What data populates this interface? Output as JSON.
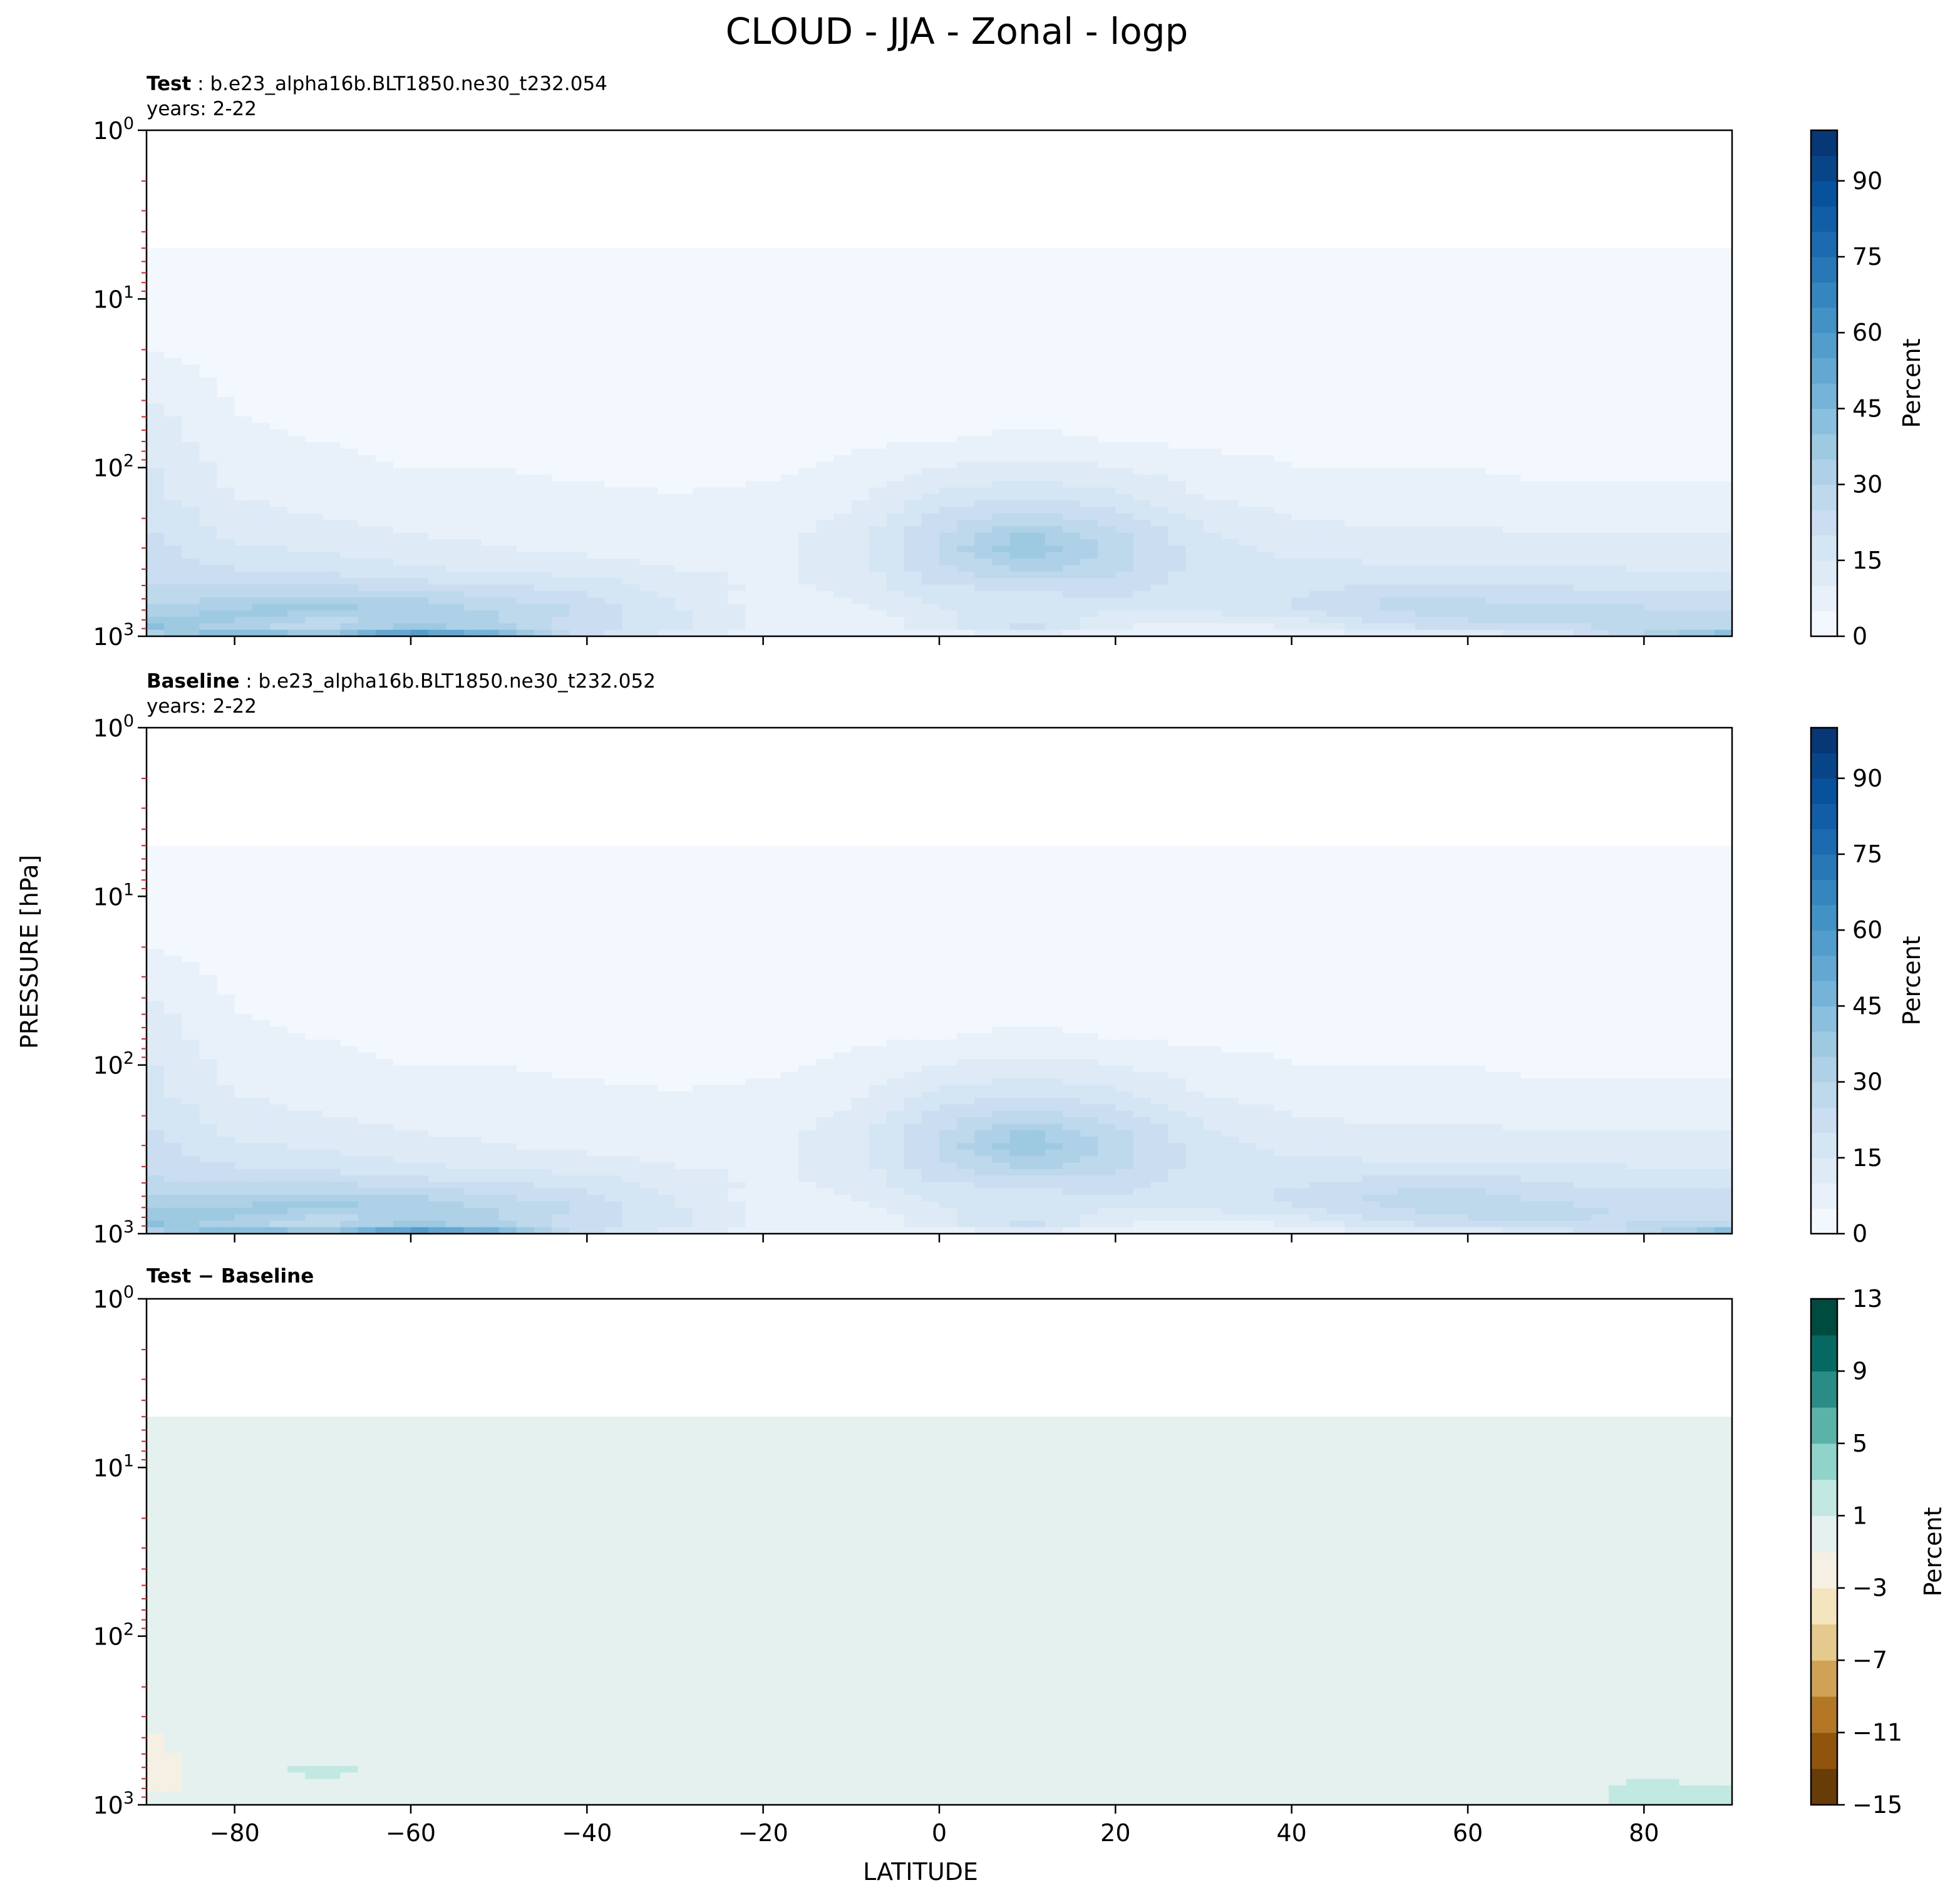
{
  "figure": {
    "title": "CLOUD - JJA - Zonal - logp",
    "xlabel": "LATITUDE",
    "ylabel": "PRESSURE [hPa]"
  },
  "chart_data": [
    {
      "type": "heatmap",
      "panel": "test",
      "title_bold": "Test",
      "title_rest": ": b.e23_alpha16b.BLT1850.ne30_t232.054",
      "subtitle": "years: 2-22",
      "x": [
        -90,
        -80,
        -70,
        -60,
        -50,
        -40,
        -30,
        -20,
        -10,
        0,
        10,
        20,
        30,
        40,
        50,
        60,
        70,
        80,
        90
      ],
      "xlim": [
        -90,
        90
      ],
      "y": [
        1000,
        900,
        800,
        700,
        600,
        500,
        400,
        300,
        250,
        200,
        150,
        100,
        70,
        50,
        30,
        20,
        10,
        5
      ],
      "ylim": [
        1000,
        1
      ],
      "yscale": "log",
      "xticks": [
        -80,
        -60,
        -40,
        -20,
        0,
        20,
        40,
        60,
        80
      ],
      "show_xticklabels": false,
      "yticks": [
        "10^0",
        "10^1",
        "10^2",
        "10^3"
      ],
      "values": [
        [
          25,
          55,
          45,
          70,
          55,
          22,
          12,
          6,
          5,
          5,
          6,
          5,
          4,
          6,
          6,
          8,
          14,
          30,
          55
        ],
        [
          42,
          30,
          28,
          38,
          32,
          22,
          16,
          8,
          6,
          12,
          22,
          10,
          6,
          10,
          18,
          20,
          22,
          28,
          30
        ],
        [
          38,
          35,
          28,
          32,
          30,
          22,
          17,
          8,
          6,
          14,
          20,
          12,
          10,
          14,
          22,
          25,
          26,
          26,
          26
        ],
        [
          32,
          36,
          38,
          33,
          30,
          24,
          16,
          8,
          8,
          15,
          14,
          16,
          16,
          20,
          25,
          28,
          28,
          26,
          25
        ],
        [
          28,
          30,
          33,
          30,
          25,
          22,
          14,
          8,
          10,
          16,
          18,
          20,
          18,
          20,
          25,
          25,
          22,
          22,
          22
        ],
        [
          25,
          24,
          25,
          22,
          20,
          18,
          13,
          9,
          11,
          20,
          22,
          22,
          18,
          18,
          20,
          20,
          20,
          18,
          18
        ],
        [
          22,
          20,
          18,
          16,
          14,
          12,
          10,
          9,
          12,
          24,
          32,
          26,
          18,
          16,
          16,
          16,
          16,
          15,
          14
        ],
        [
          22,
          16,
          14,
          12,
          10,
          9,
          8,
          8,
          12,
          26,
          40,
          28,
          17,
          14,
          13,
          12,
          12,
          12,
          12
        ],
        [
          21,
          14,
          12,
          10,
          9,
          8,
          7,
          8,
          12,
          25,
          36,
          26,
          16,
          12,
          11,
          11,
          10,
          10,
          10
        ],
        [
          20,
          12,
          10,
          9,
          8,
          7,
          6,
          7,
          11,
          22,
          28,
          22,
          14,
          10,
          9,
          9,
          8,
          8,
          8
        ],
        [
          17,
          10,
          8,
          7,
          6,
          6,
          5,
          6,
          9,
          16,
          20,
          16,
          10,
          8,
          7,
          7,
          6,
          6,
          6
        ],
        [
          16,
          8,
          6,
          5,
          5,
          4,
          4,
          4,
          6,
          10,
          12,
          10,
          7,
          5,
          5,
          5,
          4,
          4,
          4
        ],
        [
          14,
          6,
          5,
          4,
          4,
          3,
          3,
          3,
          4,
          5,
          6,
          5,
          4,
          4,
          4,
          3,
          3,
          3,
          3
        ],
        [
          12,
          5,
          4,
          3,
          3,
          3,
          3,
          3,
          3,
          4,
          4,
          4,
          3,
          3,
          3,
          3,
          3,
          3,
          3
        ],
        [
          8,
          4,
          3,
          3,
          3,
          2,
          2,
          2,
          3,
          3,
          3,
          3,
          3,
          3,
          3,
          2,
          2,
          2,
          2
        ],
        [
          5,
          3,
          3,
          2,
          2,
          2,
          2,
          2,
          2,
          2,
          2,
          2,
          2,
          2,
          2,
          2,
          2,
          2,
          2
        ],
        [
          4,
          3,
          2,
          2,
          2,
          2,
          2,
          2,
          2,
          2,
          2,
          2,
          2,
          2,
          2,
          2,
          2,
          2,
          2
        ],
        [
          3,
          2,
          2,
          2,
          2,
          2,
          2,
          2,
          2,
          2,
          2,
          2,
          2,
          2,
          2,
          2,
          2,
          2,
          2
        ]
      ],
      "colorbar": {
        "label": "Percent",
        "ticks": [
          0,
          15,
          30,
          45,
          60,
          75,
          90
        ],
        "vmin": 0,
        "vmax": 100,
        "levels": 20,
        "colormap": [
          "#f7fbff",
          "#deebf7",
          "#c6dbef",
          "#9ecae1",
          "#6baed6",
          "#4292c6",
          "#2171b5",
          "#08519c",
          "#08306b"
        ]
      }
    },
    {
      "type": "heatmap",
      "panel": "baseline",
      "title_bold": "Baseline",
      "title_rest": ": b.e23_alpha16b.BLT1850.ne30_t232.052",
      "subtitle": "years: 2-22",
      "x": [
        -90,
        -80,
        -70,
        -60,
        -50,
        -40,
        -30,
        -20,
        -10,
        0,
        10,
        20,
        30,
        40,
        50,
        60,
        70,
        80,
        90
      ],
      "xlim": [
        -90,
        90
      ],
      "y": [
        1000,
        900,
        800,
        700,
        600,
        500,
        400,
        300,
        250,
        200,
        150,
        100,
        70,
        50,
        30,
        20,
        10,
        5
      ],
      "ylim": [
        1000,
        1
      ],
      "yscale": "log",
      "xticks": [
        -80,
        -60,
        -40,
        -20,
        0,
        20,
        40,
        60,
        80
      ],
      "show_xticklabels": false,
      "yticks": [
        "10^0",
        "10^1",
        "10^2",
        "10^3"
      ],
      "values": [
        [
          25,
          55,
          45,
          70,
          55,
          22,
          12,
          6,
          5,
          5,
          6,
          5,
          4,
          6,
          6,
          8,
          14,
          28,
          52
        ],
        [
          42,
          30,
          28,
          38,
          32,
          22,
          16,
          8,
          6,
          12,
          22,
          10,
          6,
          10,
          18,
          20,
          22,
          26,
          28
        ],
        [
          40,
          35,
          28,
          32,
          30,
          22,
          17,
          8,
          6,
          14,
          20,
          12,
          10,
          14,
          22,
          25,
          26,
          24,
          24
        ],
        [
          34,
          36,
          38,
          33,
          30,
          24,
          16,
          8,
          8,
          15,
          14,
          16,
          16,
          20,
          25,
          27,
          26,
          24,
          24
        ],
        [
          30,
          30,
          33,
          30,
          25,
          22,
          14,
          8,
          10,
          16,
          18,
          20,
          18,
          21,
          26,
          28,
          23,
          22,
          22
        ],
        [
          26,
          24,
          25,
          22,
          20,
          18,
          13,
          9,
          11,
          20,
          22,
          22,
          18,
          19,
          22,
          23,
          20,
          18,
          18
        ],
        [
          23,
          20,
          18,
          16,
          14,
          12,
          10,
          9,
          12,
          24,
          32,
          26,
          18,
          16,
          16,
          16,
          16,
          15,
          14
        ],
        [
          22,
          16,
          14,
          12,
          10,
          9,
          8,
          8,
          12,
          26,
          40,
          28,
          17,
          14,
          13,
          12,
          12,
          12,
          12
        ],
        [
          21,
          14,
          12,
          10,
          9,
          8,
          7,
          8,
          12,
          25,
          36,
          26,
          16,
          12,
          11,
          11,
          10,
          10,
          10
        ],
        [
          20,
          12,
          10,
          9,
          8,
          7,
          6,
          7,
          11,
          22,
          28,
          22,
          14,
          10,
          9,
          9,
          8,
          8,
          8
        ],
        [
          17,
          10,
          8,
          7,
          6,
          6,
          5,
          6,
          9,
          16,
          20,
          16,
          10,
          8,
          7,
          7,
          6,
          6,
          6
        ],
        [
          16,
          8,
          6,
          5,
          5,
          4,
          4,
          4,
          6,
          10,
          12,
          10,
          7,
          5,
          5,
          5,
          4,
          4,
          4
        ],
        [
          14,
          6,
          5,
          4,
          4,
          3,
          3,
          3,
          4,
          5,
          6,
          5,
          4,
          4,
          4,
          3,
          3,
          3,
          3
        ],
        [
          12,
          5,
          4,
          3,
          3,
          3,
          3,
          3,
          3,
          4,
          4,
          4,
          3,
          3,
          3,
          3,
          3,
          3,
          3
        ],
        [
          8,
          4,
          3,
          3,
          3,
          2,
          2,
          2,
          3,
          3,
          3,
          3,
          3,
          3,
          3,
          2,
          2,
          2,
          2
        ],
        [
          5,
          3,
          3,
          2,
          2,
          2,
          2,
          2,
          2,
          2,
          2,
          2,
          2,
          2,
          2,
          2,
          2,
          2,
          2
        ],
        [
          4,
          3,
          2,
          2,
          2,
          2,
          2,
          2,
          2,
          2,
          2,
          2,
          2,
          2,
          2,
          2,
          2,
          2,
          2
        ],
        [
          3,
          2,
          2,
          2,
          2,
          2,
          2,
          2,
          2,
          2,
          2,
          2,
          2,
          2,
          2,
          2,
          2,
          2,
          2
        ]
      ],
      "colorbar": {
        "label": "Percent",
        "ticks": [
          0,
          15,
          30,
          45,
          60,
          75,
          90
        ],
        "vmin": 0,
        "vmax": 100,
        "levels": 20,
        "colormap": [
          "#f7fbff",
          "#deebf7",
          "#c6dbef",
          "#9ecae1",
          "#6baed6",
          "#4292c6",
          "#2171b5",
          "#08519c",
          "#08306b"
        ]
      }
    },
    {
      "type": "heatmap",
      "panel": "difference",
      "title_bold": "Test − Baseline",
      "title_rest": "",
      "subtitle": "",
      "x": [
        -90,
        -80,
        -70,
        -60,
        -50,
        -40,
        -30,
        -20,
        -10,
        0,
        10,
        20,
        30,
        40,
        50,
        60,
        70,
        80,
        90
      ],
      "xlim": [
        -90,
        90
      ],
      "y": [
        1000,
        900,
        800,
        700,
        600,
        500,
        400,
        300,
        250,
        200,
        150,
        100,
        70,
        50,
        30,
        20,
        10,
        5
      ],
      "ylim": [
        1000,
        1
      ],
      "yscale": "log",
      "xticks": [
        -80,
        -60,
        -40,
        -20,
        0,
        20,
        40,
        60,
        80
      ],
      "show_xticklabels": true,
      "yticks": [
        "10^0",
        "10^1",
        "10^2",
        "10^3"
      ],
      "values": [
        [
          0,
          0,
          1.5,
          0,
          0,
          0,
          0,
          0,
          0,
          0,
          0,
          0,
          0,
          0,
          0,
          0,
          0,
          1.2,
          1.5
        ],
        [
          0,
          -0.5,
          0,
          0,
          0,
          0,
          0,
          0,
          0,
          0,
          0,
          0,
          0,
          0,
          0,
          -1.2,
          0,
          2,
          1.5
        ],
        [
          -2,
          0,
          0,
          0,
          0,
          0,
          0,
          0,
          0,
          0,
          0,
          0,
          0,
          0,
          0,
          0,
          0,
          1.8,
          1.5
        ],
        [
          -1.8,
          0,
          1.2,
          0,
          0,
          0,
          0,
          0,
          0,
          0,
          0,
          0,
          0,
          0,
          0,
          0,
          0,
          1.2,
          0
        ],
        [
          -1.8,
          0,
          1.6,
          0,
          0,
          0,
          0,
          0,
          0,
          0,
          0,
          0,
          0,
          0,
          0,
          0,
          0,
          0,
          0
        ],
        [
          -1.5,
          0,
          0,
          0,
          0,
          0,
          0,
          0,
          0,
          0,
          0,
          0,
          0,
          0,
          0,
          -1.2,
          0,
          0,
          0
        ],
        [
          -1.2,
          0,
          0,
          0,
          0,
          0,
          0,
          0,
          0,
          0,
          0,
          0,
          0,
          0,
          0,
          0,
          0,
          0,
          0
        ],
        [
          0,
          0,
          0,
          0,
          0,
          0,
          0,
          0,
          0,
          0,
          0,
          0,
          0,
          0,
          0,
          0,
          0,
          0,
          0
        ],
        [
          0,
          0,
          0,
          0,
          0,
          0,
          0,
          0,
          0,
          0,
          0,
          0,
          0,
          0,
          0,
          0,
          0,
          0,
          0
        ],
        [
          0,
          0,
          0,
          0,
          0,
          0,
          0,
          0,
          0,
          0,
          0,
          0,
          0,
          0,
          0,
          0,
          0,
          0,
          0
        ],
        [
          0,
          0,
          0,
          0,
          0,
          0,
          0,
          0,
          0,
          0,
          0,
          0,
          0,
          0,
          0,
          0,
          0,
          0,
          0
        ],
        [
          0,
          0,
          0,
          0,
          0,
          0,
          0,
          0,
          0,
          0,
          0,
          0,
          0,
          0,
          0,
          0,
          0,
          0,
          0
        ],
        [
          0,
          0,
          0,
          0,
          0,
          0,
          0,
          0,
          0,
          0,
          0,
          0,
          0,
          0,
          0,
          0,
          0,
          0,
          0
        ],
        [
          0,
          0,
          0,
          0,
          0,
          0,
          0,
          0,
          0,
          0,
          0,
          0,
          0,
          0,
          0,
          0,
          0,
          0,
          0
        ],
        [
          0,
          0,
          0,
          0,
          0,
          0,
          0,
          0,
          0,
          0,
          0,
          0,
          0,
          0,
          0,
          0,
          0,
          0,
          0
        ],
        [
          0,
          0,
          0,
          0,
          0,
          0,
          0,
          0,
          0,
          0,
          0,
          0,
          0,
          0,
          0,
          0,
          0,
          0,
          0
        ],
        [
          0,
          0,
          0,
          0,
          0,
          0,
          0,
          0,
          0,
          0,
          0,
          0,
          0,
          0,
          0,
          0,
          0,
          0,
          0
        ],
        [
          0,
          0,
          0,
          0,
          0,
          0,
          0,
          0,
          0,
          0,
          0,
          0,
          0,
          0,
          0,
          0,
          0,
          0,
          0
        ]
      ],
      "colorbar": {
        "label": "Percent",
        "ticks": [
          -15,
          -11,
          -7,
          -3,
          1,
          5,
          9,
          13
        ],
        "vmin": -15,
        "vmax": 13,
        "levels": 14,
        "colormap": [
          "#543005",
          "#8c510a",
          "#bf812d",
          "#dfc27d",
          "#f6e8c3",
          "#f5f5f5",
          "#c7eae5",
          "#80cdc1",
          "#35978f",
          "#01665e",
          "#003c30"
        ]
      }
    }
  ]
}
